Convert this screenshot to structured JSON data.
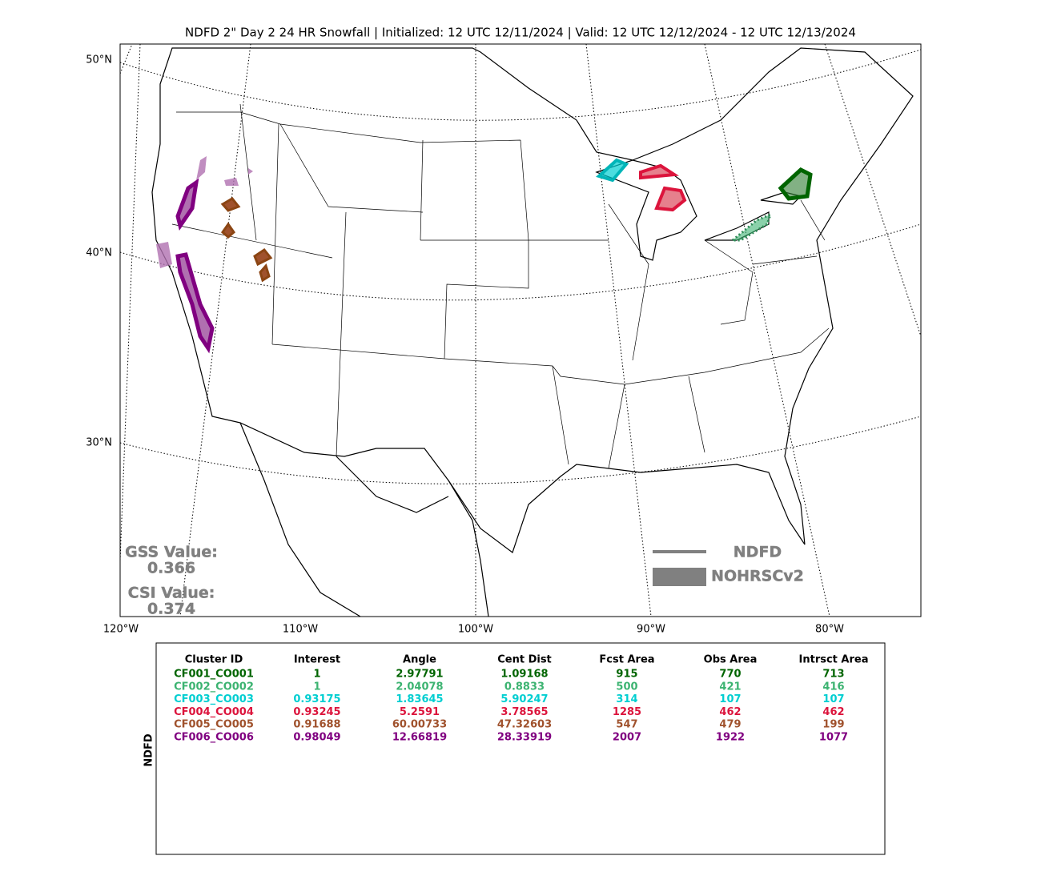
{
  "title": "NDFD 2\" Day 2 24 HR Snowfall | Initialized: 12 UTC 12/11/2024 | Valid: 12 UTC 12/12/2024 - 12 UTC 12/13/2024",
  "map": {
    "lat_labels": [
      "50°N",
      "40°N",
      "30°N"
    ],
    "lon_labels": [
      "120°W",
      "110°W",
      "100°W",
      "90°W",
      "80°W"
    ],
    "gss_label": "GSS Value:",
    "gss_value": 0.366,
    "csi_label": "CSI Value:",
    "csi_value": 0.374,
    "legend": [
      "NDFD",
      "NOHRSCv2"
    ]
  },
  "table": {
    "side_label": "NDFD",
    "header": [
      "Cluster ID",
      "Interest",
      "Angle",
      "Cent Dist",
      "Fcst Area",
      "Obs Area",
      "Intrsct Area"
    ],
    "rows": [
      {
        "color": "#006400",
        "cells": [
          "CF001_CO001",
          1,
          2.97791,
          1.09168,
          915,
          770,
          713
        ]
      },
      {
        "color": "#3cb371",
        "cells": [
          "CF002_CO002",
          1,
          2.04078,
          0.8833,
          500,
          421,
          416
        ]
      },
      {
        "color": "#00ced1",
        "cells": [
          "CF003_CO003",
          0.93175,
          1.83645,
          5.90247,
          314,
          107,
          107
        ]
      },
      {
        "color": "#dc143c",
        "cells": [
          "CF004_CO004",
          0.93245,
          5.2591,
          3.78565,
          1285,
          462,
          462
        ]
      },
      {
        "color": "#a0522d",
        "cells": [
          "CF005_CO005",
          0.91688,
          60.00733,
          47.32603,
          547,
          479,
          199
        ]
      },
      {
        "color": "#800080",
        "cells": [
          "CF006_CO006",
          0.98049,
          12.66819,
          28.33919,
          2007,
          1922,
          1077
        ]
      }
    ]
  }
}
